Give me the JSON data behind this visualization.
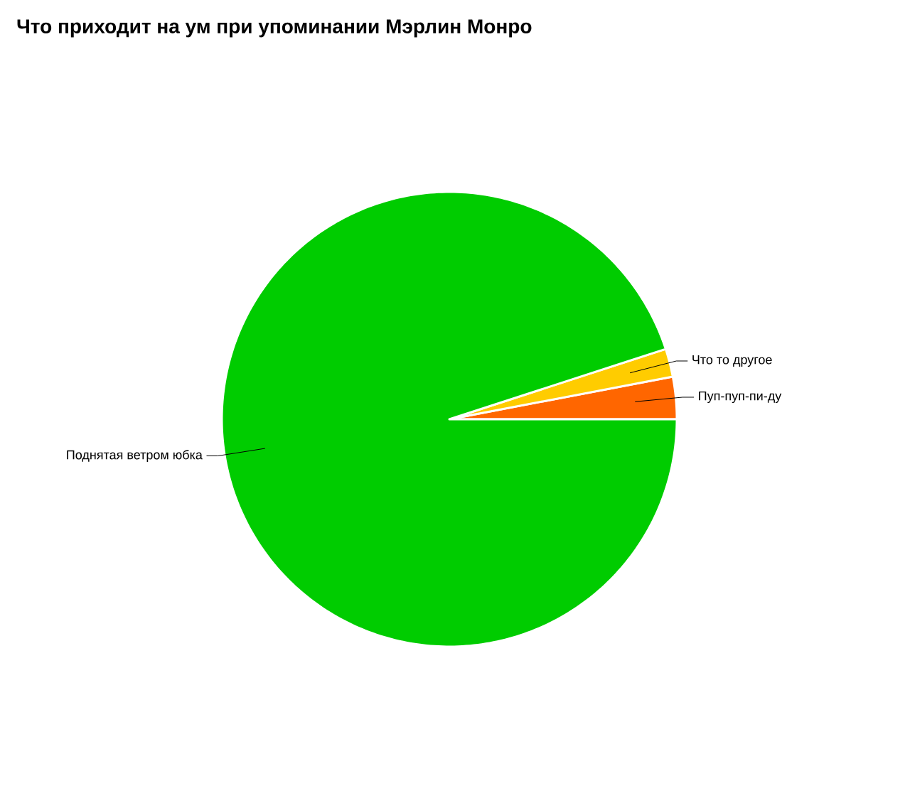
{
  "chart_data": {
    "type": "pie",
    "title": "Что приходит на ум при упоминании Мэрлин Монро",
    "categories": [
      "Пуп-пуп-пи-ду",
      "Что то другое",
      "Поднятая ветром юбка"
    ],
    "values": [
      3,
      2,
      95
    ],
    "colors": [
      "#ff6600",
      "#ffcc00",
      "#00cc00"
    ]
  }
}
